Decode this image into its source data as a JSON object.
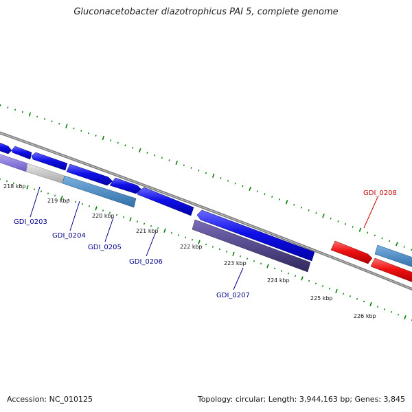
{
  "title": "Gluconacetobacter diazotrophicus PAI 5, complete genome",
  "accession": "Accession: NC_010125",
  "summary": "Topology: circular; Length: 3,944,163 bp; Genes: 3,845",
  "colors": {
    "backbone": "#888888",
    "tick": "#008000",
    "cds_blue": "#1010e8",
    "cds_red": "#ee1111",
    "feature_purple": "#8a7ad8",
    "feature_gray": "#c8c8c8",
    "feature_steel": "#4a8ac0",
    "feature_dark": "#4b3f86",
    "label_blue": "#00008b",
    "label_red": "#cc0000"
  },
  "ticks": [
    "218 kbp",
    "219 kbp",
    "220 kbp",
    "221 kbp",
    "222 kbp",
    "223 kbp",
    "224 kbp",
    "225 kbp",
    "226 kbp"
  ],
  "genes": [
    "GDI_0203",
    "GDI_0204",
    "GDI_0205",
    "GDI_0206",
    "GDI_0207",
    "GDI_0208"
  ]
}
